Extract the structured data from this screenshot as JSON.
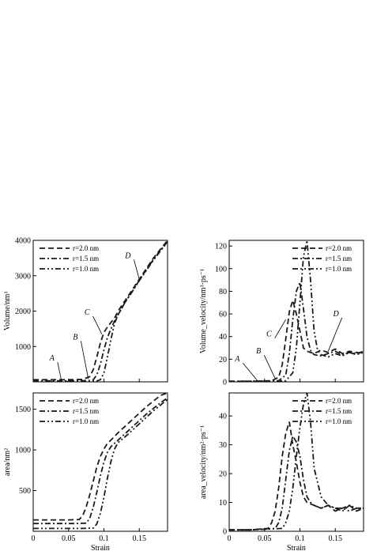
{
  "figure": {
    "legend_labels": [
      "r=2.0 nm",
      "r=1.5 nm",
      "r=1.0 nm"
    ],
    "line_color": "#1a1a1a"
  },
  "chart_data": [
    {
      "type": "line",
      "panel": "top-left",
      "xlabel": "",
      "ylabel": "Volume/nm³",
      "xlim": [
        0,
        0.19
      ],
      "ylim": [
        0,
        4000
      ],
      "xticks": [],
      "yticks": [
        "1000",
        "2000",
        "3000",
        "4000"
      ],
      "legend": "top-left",
      "grid": false,
      "annotations": [
        {
          "text": "A",
          "at": [
            0.04,
            30
          ],
          "label_at": [
            0.03,
            600
          ]
        },
        {
          "text": "B",
          "at": [
            0.078,
            80
          ],
          "label_at": [
            0.063,
            1200
          ]
        },
        {
          "text": "C",
          "at": [
            0.097,
            1350
          ],
          "label_at": [
            0.08,
            1900
          ]
        },
        {
          "text": "D",
          "at": [
            0.15,
            2900
          ],
          "label_at": [
            0.138,
            3500
          ]
        }
      ],
      "series": [
        {
          "name": "r=2.0 nm",
          "style": "dash",
          "x": [
            0,
            0.02,
            0.05,
            0.07,
            0.08,
            0.085,
            0.09,
            0.095,
            0.1,
            0.105,
            0.11,
            0.115,
            0.12,
            0.13,
            0.14,
            0.15,
            0.16,
            0.17,
            0.18,
            0.19
          ],
          "y": [
            60,
            60,
            60,
            70,
            150,
            350,
            700,
            1100,
            1400,
            1550,
            1680,
            1800,
            2000,
            2300,
            2600,
            2900,
            3200,
            3500,
            3750,
            4000
          ]
        },
        {
          "name": "r=1.5 nm",
          "style": "dashdot",
          "x": [
            0,
            0.02,
            0.05,
            0.08,
            0.085,
            0.09,
            0.095,
            0.1,
            0.105,
            0.11,
            0.115,
            0.12,
            0.13,
            0.14,
            0.15,
            0.16,
            0.17,
            0.18,
            0.19
          ],
          "y": [
            30,
            30,
            30,
            35,
            60,
            200,
            500,
            900,
            1250,
            1500,
            1720,
            1900,
            2250,
            2550,
            2870,
            3170,
            3460,
            3720,
            3960
          ]
        },
        {
          "name": "r=1.0 nm",
          "style": "dashdotdot",
          "x": [
            0,
            0.02,
            0.05,
            0.08,
            0.09,
            0.095,
            0.1,
            0.105,
            0.11,
            0.115,
            0.12,
            0.13,
            0.14,
            0.15,
            0.16,
            0.17,
            0.18,
            0.19
          ],
          "y": [
            10,
            10,
            10,
            15,
            25,
            60,
            250,
            700,
            1200,
            1650,
            1900,
            2250,
            2550,
            2860,
            3150,
            3440,
            3700,
            3950
          ]
        }
      ]
    },
    {
      "type": "line",
      "panel": "top-right",
      "xlabel": "",
      "ylabel": "Volume_velocity/nm³·ps⁻¹",
      "xlim": [
        0,
        0.19
      ],
      "ylim": [
        0,
        125
      ],
      "xticks": [],
      "yticks": [
        "0",
        "20",
        "40",
        "60",
        "80",
        "100",
        "120"
      ],
      "legend": "top-right",
      "grid": false,
      "annotations": [
        {
          "text": "A",
          "at": [
            0.04,
            1
          ],
          "label_at": [
            0.015,
            18
          ]
        },
        {
          "text": "B",
          "at": [
            0.065,
            3
          ],
          "label_at": [
            0.045,
            25
          ]
        },
        {
          "text": "C",
          "at": [
            0.08,
            55
          ],
          "label_at": [
            0.06,
            40
          ]
        },
        {
          "text": "D",
          "at": [
            0.14,
            27
          ],
          "label_at": [
            0.155,
            58
          ]
        }
      ],
      "series": [
        {
          "name": "r=2.0 nm",
          "style": "dash",
          "x": [
            0,
            0.03,
            0.06,
            0.07,
            0.075,
            0.08,
            0.085,
            0.09,
            0.095,
            0.1,
            0.105,
            0.11,
            0.12,
            0.13,
            0.14,
            0.15,
            0.16,
            0.17,
            0.18,
            0.19
          ],
          "y": [
            0.5,
            0.5,
            1,
            4,
            15,
            38,
            62,
            72,
            60,
            45,
            30,
            27,
            25,
            28,
            26,
            29,
            25,
            27,
            26,
            25
          ]
        },
        {
          "name": "r=1.5 nm",
          "style": "dashdot",
          "x": [
            0,
            0.03,
            0.07,
            0.08,
            0.085,
            0.09,
            0.095,
            0.1,
            0.105,
            0.11,
            0.115,
            0.12,
            0.13,
            0.14,
            0.15,
            0.16,
            0.17,
            0.18,
            0.19
          ],
          "y": [
            0.5,
            0.5,
            1,
            6,
            25,
            55,
            80,
            88,
            65,
            40,
            28,
            24,
            23,
            25,
            27,
            24,
            26,
            25,
            27
          ]
        },
        {
          "name": "r=1.0 nm",
          "style": "dashdotdot",
          "x": [
            0,
            0.03,
            0.08,
            0.09,
            0.095,
            0.1,
            0.105,
            0.11,
            0.115,
            0.12,
            0.125,
            0.13,
            0.14,
            0.15,
            0.16,
            0.17,
            0.18,
            0.19
          ],
          "y": [
            0.5,
            0.5,
            1,
            8,
            30,
            70,
            110,
            125,
            90,
            45,
            28,
            24,
            22,
            25,
            23,
            26,
            24,
            26
          ]
        }
      ]
    },
    {
      "type": "line",
      "panel": "bottom-left",
      "xlabel": "Strain",
      "ylabel": "area/nm²",
      "xlim": [
        0,
        0.19
      ],
      "ylim": [
        0,
        1700
      ],
      "xticks": [
        "0",
        "0.05",
        "0.1",
        "0.15"
      ],
      "yticks": [
        "500",
        "1000",
        "1500"
      ],
      "legend": "top-left",
      "grid": false,
      "series": [
        {
          "name": "r=2.0 nm",
          "style": "dash",
          "x": [
            0,
            0.05,
            0.065,
            0.07,
            0.075,
            0.08,
            0.085,
            0.09,
            0.095,
            0.1,
            0.105,
            0.11,
            0.12,
            0.13,
            0.14,
            0.15,
            0.16,
            0.17,
            0.18,
            0.19
          ],
          "y": [
            140,
            140,
            145,
            190,
            300,
            450,
            620,
            790,
            920,
            1010,
            1080,
            1120,
            1210,
            1290,
            1370,
            1450,
            1530,
            1600,
            1670,
            1700
          ]
        },
        {
          "name": "r=1.5 nm",
          "style": "dashdot",
          "x": [
            0,
            0.06,
            0.075,
            0.08,
            0.085,
            0.09,
            0.095,
            0.1,
            0.105,
            0.11,
            0.115,
            0.12,
            0.13,
            0.14,
            0.15,
            0.16,
            0.17,
            0.18,
            0.19
          ],
          "y": [
            95,
            95,
            100,
            160,
            300,
            480,
            680,
            850,
            970,
            1040,
            1080,
            1120,
            1200,
            1280,
            1360,
            1440,
            1510,
            1580,
            1640
          ]
        },
        {
          "name": "r=1.0 nm",
          "style": "dashdotdot",
          "x": [
            0,
            0.07,
            0.085,
            0.09,
            0.095,
            0.1,
            0.105,
            0.11,
            0.115,
            0.12,
            0.13,
            0.14,
            0.15,
            0.16,
            0.17,
            0.18,
            0.19
          ],
          "y": [
            35,
            35,
            40,
            90,
            220,
            420,
            650,
            860,
            1010,
            1090,
            1160,
            1240,
            1320,
            1400,
            1480,
            1550,
            1620
          ]
        }
      ]
    },
    {
      "type": "line",
      "panel": "bottom-right",
      "xlabel": "Strain",
      "ylabel": "area_velocity/nm²·ps⁻¹",
      "xlim": [
        0,
        0.19
      ],
      "ylim": [
        0,
        48
      ],
      "xticks": [
        "0",
        "0.05",
        "0.1",
        "0.15"
      ],
      "yticks": [
        "0",
        "10",
        "20",
        "30",
        "40"
      ],
      "legend": "top-right",
      "grid": false,
      "series": [
        {
          "name": "r=2.0 nm",
          "style": "dash",
          "x": [
            0,
            0.03,
            0.055,
            0.06,
            0.065,
            0.07,
            0.075,
            0.08,
            0.085,
            0.09,
            0.095,
            0.1,
            0.105,
            0.11,
            0.12,
            0.13,
            0.14,
            0.15,
            0.16,
            0.17,
            0.18,
            0.19
          ],
          "y": [
            0.5,
            0.5,
            1,
            3,
            7,
            15,
            26,
            34,
            38,
            30,
            24,
            17,
            12,
            10,
            9,
            8,
            9,
            7,
            8,
            9,
            7,
            8
          ]
        },
        {
          "name": "r=1.5 nm",
          "style": "dashdot",
          "x": [
            0,
            0.03,
            0.065,
            0.07,
            0.075,
            0.08,
            0.085,
            0.09,
            0.095,
            0.1,
            0.105,
            0.11,
            0.115,
            0.12,
            0.13,
            0.14,
            0.15,
            0.16,
            0.17,
            0.18,
            0.19
          ],
          "y": [
            0.5,
            0.5,
            1,
            3,
            8,
            18,
            28,
            33,
            31,
            26,
            18,
            12,
            10,
            9,
            8,
            9,
            8,
            7,
            9,
            8,
            8
          ]
        },
        {
          "name": "r=1.0 nm",
          "style": "dashdotdot",
          "x": [
            0,
            0.03,
            0.075,
            0.08,
            0.085,
            0.09,
            0.095,
            0.1,
            0.105,
            0.11,
            0.115,
            0.12,
            0.13,
            0.14,
            0.15,
            0.16,
            0.17,
            0.18,
            0.19
          ],
          "y": [
            0.5,
            0.5,
            1,
            3,
            7,
            15,
            26,
            36,
            44,
            48,
            38,
            22,
            12,
            9,
            8,
            8,
            7,
            8,
            8
          ]
        }
      ]
    }
  ]
}
